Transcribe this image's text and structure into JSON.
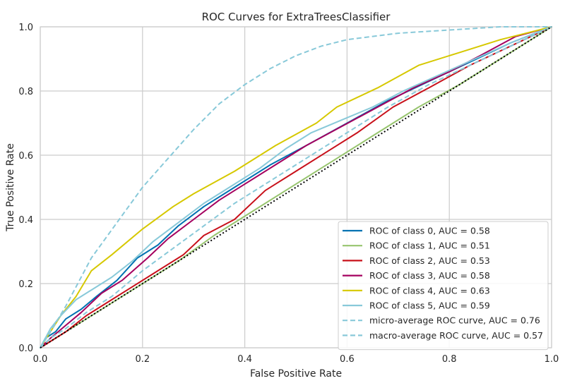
{
  "chart_data": {
    "type": "line",
    "title": "ROC Curves for ExtraTreesClassifier",
    "xlabel": "False Positive Rate",
    "ylabel": "True Positive Rate",
    "xlim": [
      0.0,
      1.0
    ],
    "ylim": [
      0.0,
      1.0
    ],
    "x_ticks": [
      "0.0",
      "0.2",
      "0.4",
      "0.6",
      "0.8",
      "1.0"
    ],
    "y_ticks": [
      "0.0",
      "0.2",
      "0.4",
      "0.6",
      "0.8",
      "1.0"
    ],
    "grid": true,
    "legend_position": "lower-right",
    "diagonal": {
      "style": "dotted",
      "color": "#000000",
      "points": [
        [
          0,
          0
        ],
        [
          1,
          1
        ]
      ]
    },
    "series": [
      {
        "name": "ROC of class 0, AUC = 0.58",
        "color": "#0072b2",
        "style": "solid",
        "points": [
          [
            0,
            0
          ],
          [
            0.01,
            0.03
          ],
          [
            0.03,
            0.05
          ],
          [
            0.05,
            0.09
          ],
          [
            0.08,
            0.12
          ],
          [
            0.11,
            0.16
          ],
          [
            0.15,
            0.21
          ],
          [
            0.19,
            0.28
          ],
          [
            0.23,
            0.32
          ],
          [
            0.27,
            0.38
          ],
          [
            0.32,
            0.44
          ],
          [
            0.38,
            0.5
          ],
          [
            0.45,
            0.57
          ],
          [
            0.52,
            0.63
          ],
          [
            0.6,
            0.7
          ],
          [
            0.68,
            0.77
          ],
          [
            0.76,
            0.83
          ],
          [
            0.84,
            0.89
          ],
          [
            0.92,
            0.95
          ],
          [
            1,
            1
          ]
        ]
      },
      {
        "name": "ROC of class 1, AUC = 0.51",
        "color": "#97c46e",
        "style": "solid",
        "points": [
          [
            0,
            0
          ],
          [
            0.02,
            0.02
          ],
          [
            0.05,
            0.05
          ],
          [
            0.09,
            0.09
          ],
          [
            0.14,
            0.14
          ],
          [
            0.2,
            0.2
          ],
          [
            0.27,
            0.27
          ],
          [
            0.34,
            0.35
          ],
          [
            0.42,
            0.43
          ],
          [
            0.5,
            0.51
          ],
          [
            0.58,
            0.59
          ],
          [
            0.66,
            0.67
          ],
          [
            0.74,
            0.75
          ],
          [
            0.82,
            0.82
          ],
          [
            0.9,
            0.9
          ],
          [
            0.96,
            0.96
          ],
          [
            1,
            1
          ]
        ]
      },
      {
        "name": "ROC of class 2, AUC = 0.53",
        "color": "#c8101a",
        "style": "solid",
        "points": [
          [
            0,
            0
          ],
          [
            0.02,
            0.02
          ],
          [
            0.05,
            0.05
          ],
          [
            0.09,
            0.1
          ],
          [
            0.14,
            0.15
          ],
          [
            0.18,
            0.19
          ],
          [
            0.22,
            0.23
          ],
          [
            0.28,
            0.29
          ],
          [
            0.32,
            0.35
          ],
          [
            0.38,
            0.4
          ],
          [
            0.44,
            0.49
          ],
          [
            0.5,
            0.55
          ],
          [
            0.56,
            0.61
          ],
          [
            0.62,
            0.67
          ],
          [
            0.69,
            0.75
          ],
          [
            0.76,
            0.81
          ],
          [
            0.84,
            0.88
          ],
          [
            0.92,
            0.94
          ],
          [
            1,
            1
          ]
        ]
      },
      {
        "name": "ROC of class 3, AUC = 0.58",
        "color": "#a4005f",
        "style": "solid",
        "points": [
          [
            0,
            0
          ],
          [
            0.02,
            0.03
          ],
          [
            0.05,
            0.07
          ],
          [
            0.08,
            0.11
          ],
          [
            0.12,
            0.17
          ],
          [
            0.16,
            0.21
          ],
          [
            0.21,
            0.28
          ],
          [
            0.25,
            0.34
          ],
          [
            0.3,
            0.4
          ],
          [
            0.35,
            0.46
          ],
          [
            0.4,
            0.51
          ],
          [
            0.46,
            0.57
          ],
          [
            0.52,
            0.63
          ],
          [
            0.59,
            0.69
          ],
          [
            0.66,
            0.75
          ],
          [
            0.73,
            0.81
          ],
          [
            0.8,
            0.86
          ],
          [
            0.86,
            0.91
          ],
          [
            0.93,
            0.97
          ],
          [
            1,
            1
          ]
        ]
      },
      {
        "name": "ROC of class 4, AUC = 0.63",
        "color": "#d6c800",
        "style": "solid",
        "points": [
          [
            0,
            0
          ],
          [
            0.02,
            0.05
          ],
          [
            0.04,
            0.1
          ],
          [
            0.07,
            0.16
          ],
          [
            0.1,
            0.24
          ],
          [
            0.14,
            0.29
          ],
          [
            0.2,
            0.37
          ],
          [
            0.26,
            0.44
          ],
          [
            0.3,
            0.48
          ],
          [
            0.38,
            0.55
          ],
          [
            0.46,
            0.63
          ],
          [
            0.54,
            0.7
          ],
          [
            0.58,
            0.75
          ],
          [
            0.66,
            0.81
          ],
          [
            0.74,
            0.88
          ],
          [
            0.82,
            0.92
          ],
          [
            0.9,
            0.96
          ],
          [
            1,
            1
          ]
        ]
      },
      {
        "name": "ROC of class 5, AUC = 0.59",
        "color": "#88c9d9",
        "style": "solid",
        "points": [
          [
            0,
            0
          ],
          [
            0.01,
            0.03
          ],
          [
            0.02,
            0.06
          ],
          [
            0.04,
            0.1
          ],
          [
            0.07,
            0.15
          ],
          [
            0.1,
            0.18
          ],
          [
            0.14,
            0.22
          ],
          [
            0.18,
            0.27
          ],
          [
            0.22,
            0.33
          ],
          [
            0.27,
            0.39
          ],
          [
            0.32,
            0.45
          ],
          [
            0.37,
            0.5
          ],
          [
            0.43,
            0.56
          ],
          [
            0.48,
            0.62
          ],
          [
            0.53,
            0.67
          ],
          [
            0.59,
            0.71
          ],
          [
            0.65,
            0.75
          ],
          [
            0.71,
            0.8
          ],
          [
            0.78,
            0.85
          ],
          [
            0.85,
            0.9
          ],
          [
            0.92,
            0.95
          ],
          [
            1,
            1
          ]
        ]
      },
      {
        "name": "micro-average ROC curve, AUC = 0.76",
        "color": "#88c9d9",
        "style": "dashed",
        "points": [
          [
            0,
            0
          ],
          [
            0.02,
            0.05
          ],
          [
            0.05,
            0.13
          ],
          [
            0.1,
            0.28
          ],
          [
            0.15,
            0.39
          ],
          [
            0.2,
            0.5
          ],
          [
            0.25,
            0.59
          ],
          [
            0.3,
            0.68
          ],
          [
            0.35,
            0.76
          ],
          [
            0.4,
            0.82
          ],
          [
            0.45,
            0.87
          ],
          [
            0.5,
            0.91
          ],
          [
            0.55,
            0.94
          ],
          [
            0.6,
            0.96
          ],
          [
            0.7,
            0.98
          ],
          [
            0.8,
            0.99
          ],
          [
            0.9,
            1.0
          ],
          [
            1,
            1
          ]
        ]
      },
      {
        "name": "macro-average ROC curve, AUC = 0.57",
        "color": "#88c9d9",
        "style": "dashed",
        "points": [
          [
            0,
            0
          ],
          [
            0.02,
            0.03
          ],
          [
            0.05,
            0.06
          ],
          [
            0.09,
            0.11
          ],
          [
            0.14,
            0.16
          ],
          [
            0.2,
            0.24
          ],
          [
            0.26,
            0.31
          ],
          [
            0.32,
            0.38
          ],
          [
            0.38,
            0.45
          ],
          [
            0.45,
            0.52
          ],
          [
            0.52,
            0.59
          ],
          [
            0.6,
            0.67
          ],
          [
            0.68,
            0.75
          ],
          [
            0.76,
            0.82
          ],
          [
            0.84,
            0.88
          ],
          [
            0.92,
            0.94
          ],
          [
            1,
            1
          ]
        ]
      }
    ]
  }
}
